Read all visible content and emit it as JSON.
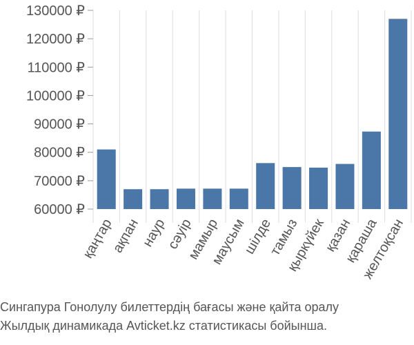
{
  "chart_data": {
    "type": "bar",
    "categories": [
      "қаңтар",
      "ақпан",
      "наур",
      "сәуір",
      "мамыр",
      "маусым",
      "шілде",
      "тамыз",
      "қыркүйек",
      "қазан",
      "қараша",
      "желтоқсан"
    ],
    "values": [
      81000,
      67000,
      67000,
      67200,
      67200,
      67200,
      76200,
      74800,
      74600,
      75900,
      87300,
      127000
    ],
    "ylim": [
      60000,
      130000
    ],
    "yticks": [
      60000,
      70000,
      80000,
      90000,
      100000,
      110000,
      120000,
      130000
    ],
    "ytick_labels": [
      "60000 ₽",
      "70000 ₽",
      "80000 ₽",
      "90000 ₽",
      "100000 ₽",
      "110000 ₽",
      "120000 ₽",
      "130000 ₽"
    ],
    "bar_color": "#4a76a8",
    "grid": "vertical",
    "title": "",
    "xlabel": "",
    "ylabel": ""
  },
  "caption": {
    "line1": "Сингапура Гонолулу билеттердің бағасы және қайта оралу",
    "line2": "Жылдық динамикада Avticket.kz статистикасы бойынша."
  }
}
